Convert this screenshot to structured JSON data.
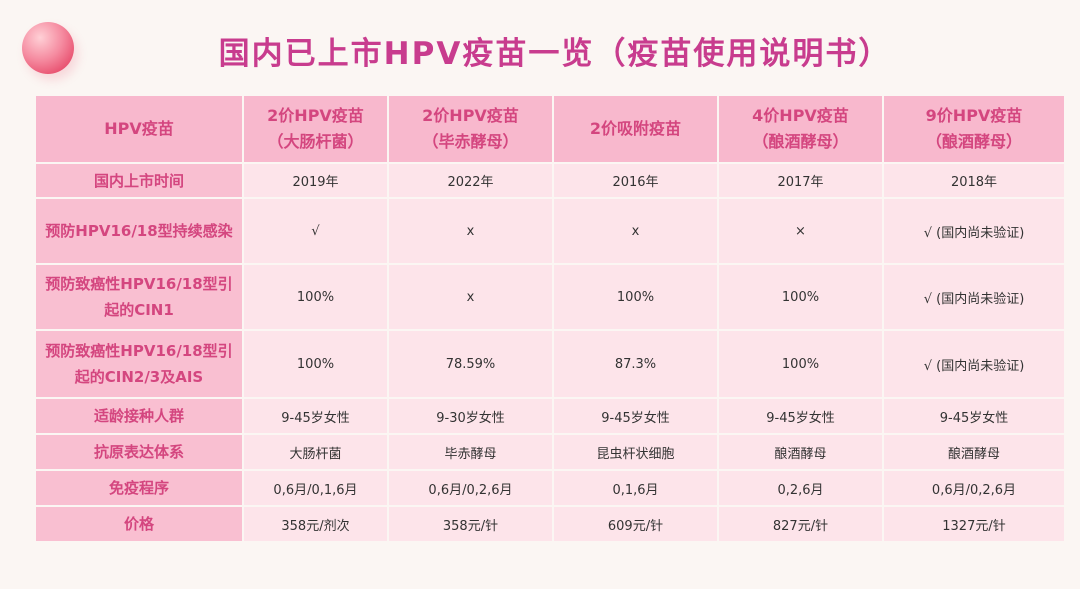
{
  "title": "国内已上市HPV疫苗一览（疫苗使用说明书）",
  "header": {
    "corner": "HPV疫苗",
    "columns": [
      {
        "line1": "2价HPV疫苗",
        "line2": "（大肠杆菌）"
      },
      {
        "line1": "2价HPV疫苗",
        "line2": "（毕赤酵母）"
      },
      {
        "line1": "2价吸附疫苗",
        "line2": ""
      },
      {
        "line1": "4价HPV疫苗",
        "line2": "（酿酒酵母）"
      },
      {
        "line1": "9价HPV疫苗",
        "line2": "（酿酒酵母）"
      }
    ]
  },
  "rows": [
    {
      "label": "国内上市时间",
      "cells": [
        "2019年",
        "2022年",
        "2016年",
        "2017年",
        "2018年"
      ]
    },
    {
      "label": "预防HPV16/18型持续感染",
      "cells": [
        "√",
        "x",
        "x",
        "×",
        "√ (国内尚未验证)"
      ]
    },
    {
      "label": "预防致癌性HPV16/18型引起的CIN1",
      "cells": [
        "100%",
        "x",
        "100%",
        "100%",
        "√ (国内尚未验证)"
      ]
    },
    {
      "label": "预防致癌性HPV16/18型引起的CIN2/3及AIS",
      "cells": [
        "100%",
        "78.59%",
        "87.3%",
        "100%",
        "√ (国内尚未验证)"
      ]
    },
    {
      "label": "适龄接种人群",
      "cells": [
        "9-45岁女性",
        "9-30岁女性",
        "9-45岁女性",
        "9-45岁女性",
        "9-45岁女性"
      ]
    },
    {
      "label": "抗原表达体系",
      "cells": [
        "大肠杆菌",
        "毕赤酵母",
        "昆虫杆状细胞",
        "酿酒酵母",
        "酿酒酵母"
      ]
    },
    {
      "label": "免疫程序",
      "cells": [
        "0,6月/0,1,6月",
        "0,6月/0,2,6月",
        "0,1,6月",
        "0,2,6月",
        "0,6月/0,2,6月"
      ]
    },
    {
      "label": "价格",
      "cells": [
        "358元/剂次",
        "358元/针",
        "609元/针",
        "827元/针",
        "1327元/针"
      ]
    }
  ]
}
